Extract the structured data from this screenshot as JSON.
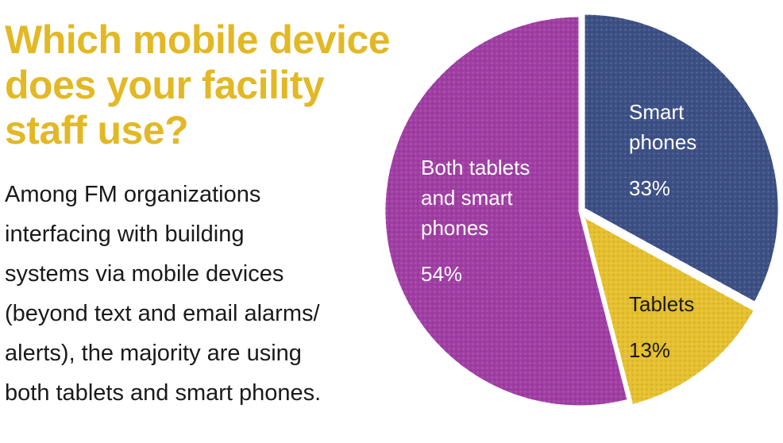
{
  "title_lines": [
    "Which mobile device",
    "does your facility",
    "staff use?"
  ],
  "subtitle_lines": [
    "Among FM organizations",
    "interfacing with building",
    "systems via mobile devices",
    "(beyond text and email alarms/",
    "alerts), the majority are using",
    "both tablets and smart phones."
  ],
  "chart_data": {
    "type": "pie",
    "slices": [
      {
        "label": [
          "Smart",
          "phones"
        ],
        "value": 33,
        "display": "33%",
        "color": "#3d5085",
        "text": "light"
      },
      {
        "label": [
          "Tablets"
        ],
        "value": 13,
        "display": "13%",
        "color": "#e6c02e",
        "text": "dark"
      },
      {
        "label": [
          "Both tablets",
          "and smart",
          "phones"
        ],
        "value": 54,
        "display": "54%",
        "color": "#a03ea4",
        "text": "light"
      }
    ]
  }
}
